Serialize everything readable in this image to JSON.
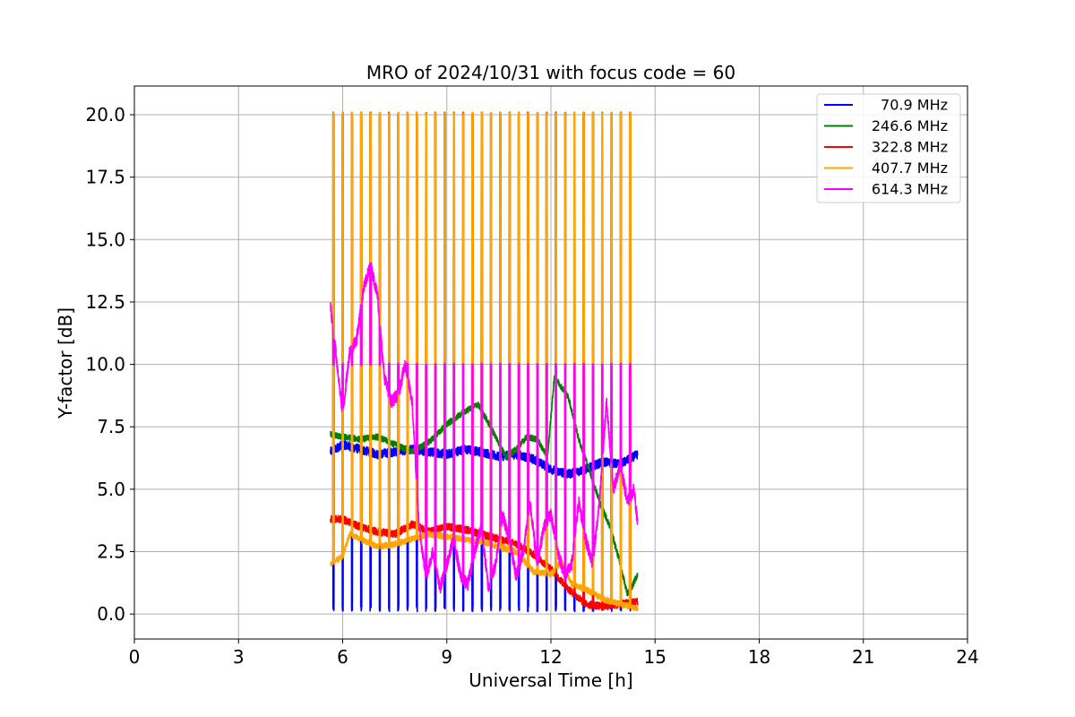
{
  "chart_data": {
    "type": "line",
    "title": "MRO of 2024/10/31 with focus code = 60",
    "xlabel": "Universal Time [h]",
    "ylabel": "Y-factor [dB]",
    "xlim": [
      0,
      24
    ],
    "ylim": [
      -1.0,
      21.15
    ],
    "x_ticks": [
      0,
      3,
      6,
      9,
      12,
      15,
      18,
      21,
      24
    ],
    "x_tick_labels": [
      "0",
      "3",
      "6",
      "9",
      "12",
      "15",
      "18",
      "21",
      "24"
    ],
    "y_ticks": [
      0.0,
      2.5,
      5.0,
      7.5,
      10.0,
      12.5,
      15.0,
      17.5,
      20.0
    ],
    "y_tick_labels": [
      "0.0",
      "2.5",
      "5.0",
      "7.5",
      "10.0",
      "12.5",
      "15.0",
      "17.5",
      "20.0"
    ],
    "grid": true,
    "legend_position": "top-right",
    "calibration": {
      "first_pulse_h": 5.72,
      "pulse_spacing_h": 0.267,
      "pulse_count": 33,
      "pulse_top_db": 20.0,
      "pulse_614_top_db": 10.0,
      "pulse_70_low_db": 0.1
    },
    "series": [
      {
        "name": "70.9 MHz",
        "color": "#0000ff",
        "x": [
          5.65,
          6.0,
          6.5,
          7.0,
          7.5,
          8.0,
          8.5,
          9.0,
          9.5,
          10.0,
          10.5,
          11.0,
          11.5,
          12.0,
          12.5,
          13.0,
          13.5,
          14.0,
          14.5
        ],
        "y": [
          6.5,
          6.8,
          6.6,
          6.4,
          6.5,
          6.6,
          6.5,
          6.4,
          6.6,
          6.5,
          6.3,
          6.4,
          6.2,
          5.8,
          5.6,
          5.8,
          6.1,
          6.0,
          6.4
        ]
      },
      {
        "name": "246.6 MHz",
        "color": "#008000",
        "x": [
          5.65,
          6.0,
          6.5,
          7.0,
          7.5,
          8.0,
          8.5,
          9.0,
          9.5,
          9.9,
          10.3,
          10.7,
          11.0,
          11.3,
          11.6,
          11.9,
          12.1,
          12.5,
          12.8,
          13.1,
          13.4,
          13.7,
          14.0,
          14.2,
          14.3,
          14.5
        ],
        "y": [
          7.2,
          7.1,
          7.0,
          7.1,
          6.8,
          6.5,
          6.9,
          7.6,
          8.1,
          8.4,
          7.4,
          6.3,
          6.6,
          7.1,
          7.0,
          6.3,
          9.5,
          8.7,
          7.0,
          5.8,
          4.5,
          3.5,
          2.0,
          0.8,
          1.0,
          1.6
        ]
      },
      {
        "name": "322.8 MHz",
        "color": "#ff0000",
        "x": [
          5.65,
          6.0,
          6.5,
          7.0,
          7.5,
          8.0,
          8.5,
          9.0,
          9.5,
          10.0,
          10.5,
          11.0,
          11.5,
          12.0,
          12.5,
          13.0,
          13.5,
          14.0,
          14.5
        ],
        "y": [
          3.8,
          3.8,
          3.5,
          3.3,
          3.2,
          3.6,
          3.3,
          3.5,
          3.4,
          3.2,
          3.0,
          2.8,
          2.4,
          1.8,
          1.0,
          0.4,
          0.3,
          0.4,
          0.5
        ]
      },
      {
        "name": "407.7 MHz",
        "color": "#ffa500",
        "x": [
          5.65,
          6.0,
          6.2,
          6.5,
          7.0,
          7.5,
          8.0,
          8.5,
          9.0,
          9.5,
          10.0,
          10.5,
          11.0,
          11.5,
          12.0,
          12.3,
          12.6,
          13.0,
          13.5,
          14.0,
          14.5
        ],
        "y": [
          2.0,
          2.3,
          3.2,
          3.0,
          2.7,
          2.8,
          3.0,
          3.2,
          3.1,
          3.0,
          2.9,
          2.7,
          2.5,
          1.7,
          1.6,
          2.1,
          1.2,
          1.0,
          0.6,
          0.4,
          0.2
        ]
      },
      {
        "name": "614.3 MHz",
        "color": "#ff00ff",
        "x": [
          5.65,
          5.8,
          6.0,
          6.2,
          6.4,
          6.6,
          6.8,
          7.0,
          7.2,
          7.4,
          7.6,
          7.8,
          8.0,
          8.2,
          8.4,
          8.6,
          8.8,
          9.0,
          9.2,
          9.4,
          9.6,
          9.8,
          10.0,
          10.2,
          10.4,
          10.6,
          10.8,
          11.0,
          11.2,
          11.4,
          11.6,
          11.8,
          12.0,
          12.2,
          12.4,
          12.6,
          12.8,
          13.0,
          13.2,
          13.4,
          13.6,
          13.8,
          14.0,
          14.2,
          14.4,
          14.5
        ],
        "y": [
          12.3,
          10.5,
          8.0,
          10.5,
          11.0,
          13.0,
          14.0,
          12.8,
          9.5,
          8.5,
          8.8,
          10.0,
          8.5,
          3.5,
          1.5,
          2.5,
          1.0,
          2.0,
          3.0,
          1.5,
          1.2,
          2.5,
          3.5,
          1.0,
          2.0,
          4.0,
          3.0,
          1.5,
          2.5,
          4.5,
          2.0,
          3.5,
          4.0,
          2.5,
          1.5,
          2.0,
          4.5,
          3.0,
          2.0,
          4.5,
          8.5,
          5.0,
          6.0,
          4.5,
          5.0,
          3.5
        ]
      }
    ]
  }
}
